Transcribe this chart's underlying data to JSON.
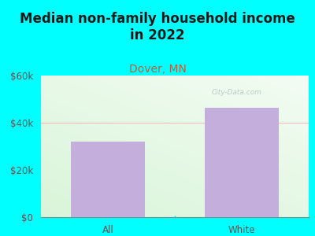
{
  "categories": [
    "All",
    "White"
  ],
  "values": [
    32000,
    46500
  ],
  "bar_color": "#C4AEDC",
  "title": "Median non-family household income\nin 2022",
  "subtitle": "Dover, MN",
  "subtitle_color": "#AA6644",
  "title_color": "#1A1A1A",
  "ylim": [
    0,
    60000
  ],
  "yticks": [
    0,
    20000,
    40000,
    60000
  ],
  "ytick_labels": [
    "$0",
    "$20k",
    "$40k",
    "$60k"
  ],
  "background_color": "#00FFFF",
  "plot_bg_left": "#D4EDDA",
  "plot_bg_right": "#F0FFF0",
  "grid_color": "#F0B0B0",
  "watermark": "City-Data.com",
  "title_fontsize": 12,
  "subtitle_fontsize": 10,
  "tick_fontsize": 8.5
}
